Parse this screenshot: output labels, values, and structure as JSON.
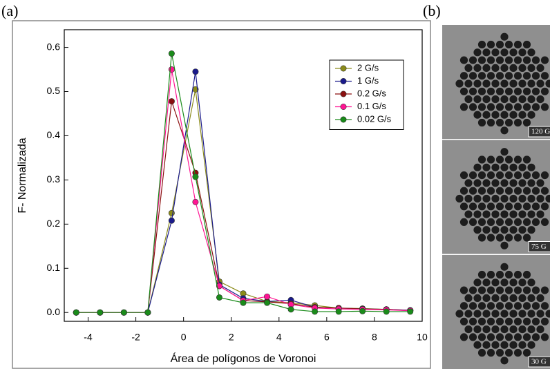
{
  "panel_labels": [
    "(a)",
    "(b)"
  ],
  "chart_data": {
    "type": "line",
    "x_label": "Área de polígonos de Voronoi",
    "y_label": "F- Normalizada",
    "x": [
      -4.5,
      -3.5,
      -2.5,
      -1.5,
      -0.5,
      0.5,
      1.5,
      2.5,
      3.5,
      4.5,
      5.5,
      6.5,
      7.5,
      8.5,
      9.5
    ],
    "series": [
      {
        "name": "2 G/s",
        "color": "#8b8b1a",
        "values": [
          0,
          0,
          0,
          0,
          0.225,
          0.505,
          0.07,
          0.043,
          0.025,
          0.022,
          0.016,
          0.01,
          0.009,
          0.007,
          0.005
        ]
      },
      {
        "name": "1 G/s",
        "color": "#1a1a8b",
        "values": [
          0,
          0,
          0,
          0,
          0.208,
          0.545,
          0.063,
          0.032,
          0.025,
          0.028,
          0.012,
          0.01,
          0.008,
          0.007,
          0.005
        ]
      },
      {
        "name": "0.2 G/s",
        "color": "#8b0f0f",
        "values": [
          0,
          0,
          0,
          0,
          0.478,
          0.316,
          0.06,
          0.027,
          0.024,
          0.02,
          0.012,
          0.01,
          0.008,
          0.007,
          0.004
        ]
      },
      {
        "name": "0.1 G/s",
        "color": "#ff1493",
        "values": [
          0,
          0,
          0,
          0,
          0.55,
          0.25,
          0.06,
          0.027,
          0.036,
          0.018,
          0.01,
          0.008,
          0.007,
          0.006,
          0.004
        ]
      },
      {
        "name": "0.02 G/s",
        "color": "#1a8b1a",
        "values": [
          0,
          0,
          0,
          0,
          0.586,
          0.307,
          0.034,
          0.022,
          0.022,
          0.007,
          0.002,
          0.002,
          0.003,
          0.002,
          0.002
        ]
      }
    ],
    "xlim": [
      -5,
      10
    ],
    "xticks": [
      -4,
      -2,
      0,
      2,
      4,
      6,
      8,
      10
    ],
    "ylim": [
      -0.02,
      0.64
    ],
    "yticks": [
      {
        "value": 0,
        "label": "0.0"
      },
      0.1,
      0.2,
      0.3,
      0.4,
      0.5,
      0.6
    ],
    "legend": "upper right"
  },
  "micrographs": [
    {
      "label": "120 G"
    },
    {
      "label": "75 G"
    },
    {
      "label": "30 G"
    }
  ]
}
